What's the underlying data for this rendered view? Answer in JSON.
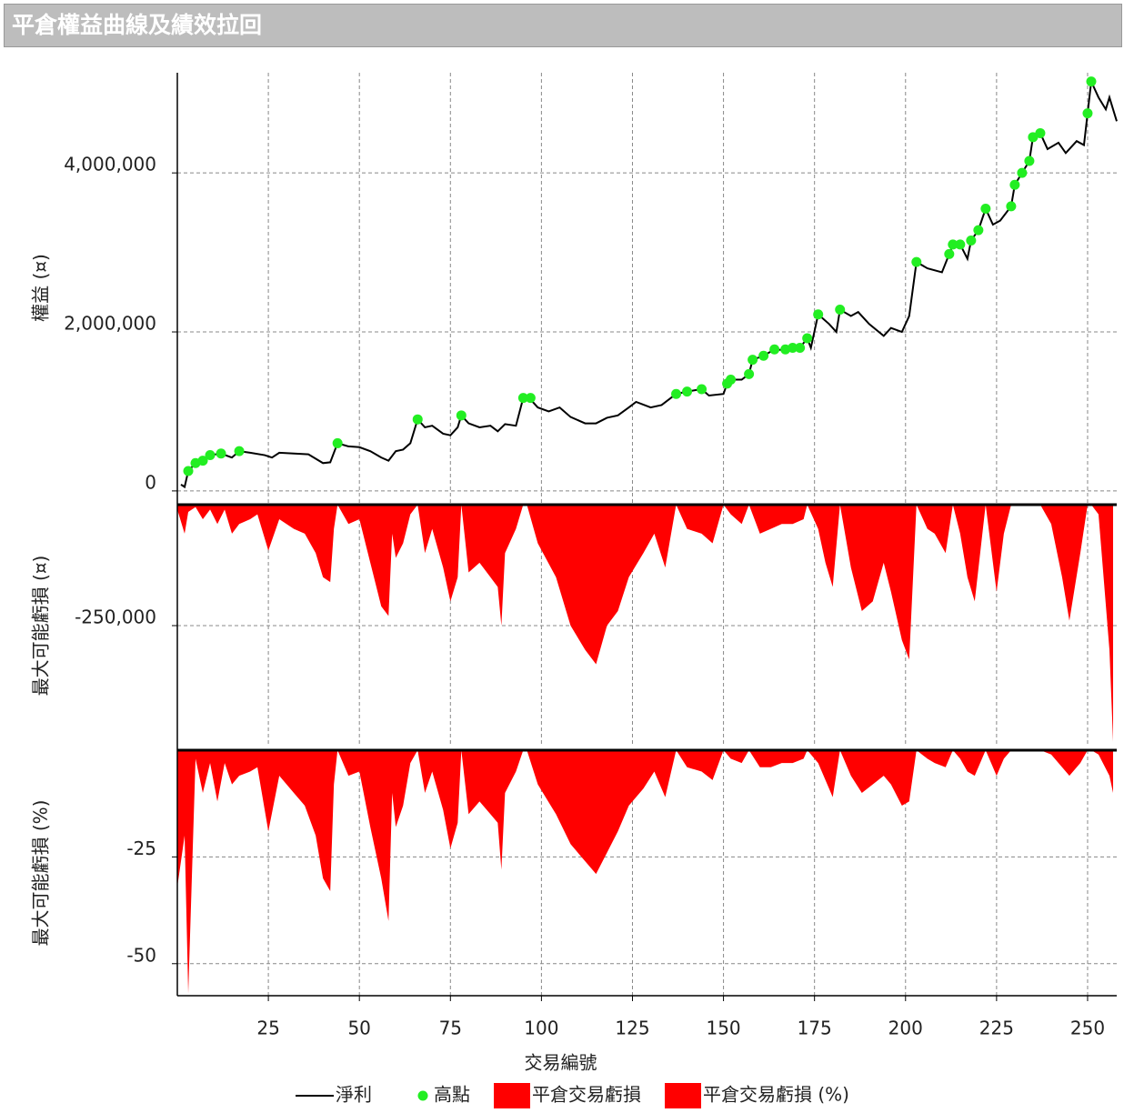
{
  "title": "平倉權益曲線及績效拉回",
  "chart_data": [
    {
      "type": "line",
      "ylabel": "權益 (¤)",
      "ylim": [
        -150000,
        5260000
      ],
      "yticks": [
        0,
        {
          "value": 2000000,
          "label": "2,000,000"
        },
        {
          "value": 4000000,
          "label": "4,000,000"
        }
      ],
      "grid": true,
      "series": [
        {
          "name": "淨利",
          "type": "line",
          "color": "#000000",
          "x": [
            1,
            2,
            3,
            5,
            7,
            9,
            12,
            15,
            17,
            20,
            24,
            26,
            28,
            32,
            36,
            40,
            42,
            44,
            47,
            50,
            53,
            56,
            58,
            60,
            62,
            64,
            66,
            68,
            70,
            73,
            75,
            77,
            78,
            80,
            83,
            86,
            88,
            90,
            93,
            95,
            97,
            99,
            102,
            105,
            108,
            112,
            115,
            118,
            121,
            124,
            126,
            130,
            133,
            137,
            140,
            144,
            146,
            150,
            151,
            152,
            155,
            157,
            158,
            161,
            164,
            167,
            169,
            171,
            173,
            174,
            176,
            179,
            181,
            182,
            185,
            187,
            190,
            194,
            196,
            199,
            201,
            203,
            206,
            210,
            212,
            213,
            215,
            217,
            218,
            220,
            222,
            224,
            226,
            229,
            230,
            232,
            234,
            235,
            237,
            239,
            242,
            244,
            247,
            249,
            250,
            251,
            253,
            255,
            256,
            258
          ],
          "values": [
            80000,
            50000,
            250000,
            350000,
            380000,
            450000,
            470000,
            420000,
            500000,
            480000,
            450000,
            420000,
            480000,
            470000,
            460000,
            350000,
            360000,
            600000,
            560000,
            550000,
            500000,
            420000,
            380000,
            500000,
            520000,
            600000,
            900000,
            800000,
            820000,
            720000,
            700000,
            800000,
            950000,
            850000,
            800000,
            820000,
            750000,
            840000,
            820000,
            1170000,
            1150000,
            1050000,
            1000000,
            1050000,
            930000,
            850000,
            850000,
            920000,
            950000,
            1050000,
            1120000,
            1050000,
            1080000,
            1220000,
            1250000,
            1280000,
            1200000,
            1220000,
            1350000,
            1400000,
            1400000,
            1470000,
            1650000,
            1700000,
            1780000,
            1770000,
            1800000,
            1800000,
            1920000,
            1800000,
            2220000,
            2100000,
            2000000,
            2280000,
            2200000,
            2250000,
            2100000,
            1950000,
            2050000,
            2000000,
            2200000,
            2880000,
            2800000,
            2750000,
            2980000,
            3100000,
            3100000,
            2920000,
            3150000,
            3280000,
            3550000,
            3350000,
            3400000,
            3580000,
            3850000,
            4000000,
            4150000,
            4450000,
            4500000,
            4300000,
            4380000,
            4250000,
            4400000,
            4350000,
            4750000,
            5150000,
            4950000,
            4800000,
            4950000,
            4650000
          ]
        },
        {
          "name": "高點",
          "type": "scatter",
          "color": "#22ee22",
          "x": [
            3,
            5,
            7,
            9,
            12,
            17,
            44,
            66,
            78,
            95,
            97,
            137,
            140,
            144,
            151,
            152,
            157,
            158,
            161,
            164,
            167,
            169,
            171,
            173,
            176,
            182,
            203,
            212,
            213,
            215,
            218,
            220,
            222,
            229,
            230,
            232,
            234,
            235,
            237,
            250,
            251
          ],
          "values": [
            250000,
            350000,
            380000,
            450000,
            470000,
            500000,
            600000,
            900000,
            950000,
            1170000,
            1170000,
            1220000,
            1250000,
            1280000,
            1350000,
            1400000,
            1470000,
            1650000,
            1700000,
            1780000,
            1780000,
            1800000,
            1800000,
            1920000,
            2220000,
            2280000,
            2880000,
            2980000,
            3100000,
            3100000,
            3150000,
            3280000,
            3550000,
            3580000,
            3850000,
            4000000,
            4150000,
            4450000,
            4500000,
            4750000,
            5150000
          ]
        }
      ]
    },
    {
      "type": "area",
      "ylabel": "最大可能虧損 (¤)",
      "ylim": [
        -500000,
        0
      ],
      "yticks": [
        {
          "value": -250000,
          "label": "-250,000"
        }
      ],
      "grid": true,
      "series": [
        {
          "name": "平倉交易虧損",
          "color": "#ff0000",
          "x": [
            0,
            2,
            3,
            5,
            7,
            9,
            11,
            13,
            15,
            17,
            20,
            22,
            25,
            28,
            32,
            35,
            38,
            40,
            42,
            43,
            44,
            47,
            50,
            53,
            56,
            58,
            59,
            60,
            62,
            64,
            66,
            68,
            70,
            73,
            75,
            77,
            78,
            80,
            83,
            86,
            88,
            89,
            90,
            93,
            95,
            96,
            99,
            104,
            108,
            112,
            115,
            118,
            121,
            124,
            128,
            131,
            134,
            137,
            140,
            144,
            147,
            150,
            152,
            155,
            157,
            160,
            163,
            166,
            169,
            172,
            173,
            176,
            178,
            180,
            182,
            185,
            188,
            191,
            194,
            196,
            199,
            201,
            203,
            206,
            208,
            211,
            213,
            215,
            217,
            219,
            222,
            225,
            227,
            229,
            230,
            237,
            240,
            243,
            245,
            248,
            250,
            251,
            253,
            256,
            257
          ],
          "values": [
            -10000,
            -60000,
            -15000,
            -5000,
            -30000,
            -10000,
            -40000,
            -10000,
            -60000,
            -40000,
            -30000,
            -20000,
            -95000,
            -30000,
            -50000,
            -60000,
            -100000,
            -150000,
            -160000,
            -50000,
            0,
            -40000,
            -30000,
            -120000,
            -210000,
            -230000,
            -60000,
            -110000,
            -80000,
            -20000,
            0,
            -100000,
            -50000,
            -130000,
            -200000,
            -150000,
            0,
            -140000,
            -120000,
            -150000,
            -170000,
            -250000,
            -100000,
            -50000,
            0,
            0,
            -80000,
            -150000,
            -250000,
            -300000,
            -330000,
            -250000,
            -220000,
            -150000,
            -100000,
            -60000,
            -130000,
            0,
            -50000,
            -60000,
            -80000,
            0,
            -20000,
            -40000,
            0,
            -60000,
            -50000,
            -40000,
            -40000,
            -30000,
            0,
            -50000,
            -120000,
            -170000,
            0,
            -130000,
            -220000,
            -200000,
            -120000,
            -180000,
            -280000,
            -320000,
            0,
            -50000,
            -60000,
            -100000,
            0,
            -60000,
            -150000,
            -200000,
            0,
            -180000,
            -60000,
            0,
            0,
            0,
            -40000,
            -150000,
            -240000,
            -100000,
            0,
            0,
            -20000,
            -300000,
            -490000
          ]
        }
      ]
    },
    {
      "type": "area",
      "ylabel": "最大可能虧損 (%)",
      "xlabel": "交易編號",
      "ylim": [
        -57.5,
        0
      ],
      "yticks": [
        -25,
        -50
      ],
      "xlim": [
        0,
        258
      ],
      "xticks": [
        25,
        50,
        75,
        100,
        125,
        150,
        175,
        200,
        225,
        250
      ],
      "grid": true,
      "series": [
        {
          "name": "平倉交易虧損 (%)",
          "color": "#ff0000",
          "x": [
            0,
            2,
            3,
            5,
            7,
            9,
            11,
            13,
            15,
            17,
            20,
            22,
            25,
            28,
            32,
            35,
            38,
            40,
            42,
            43,
            44,
            47,
            50,
            53,
            56,
            58,
            59,
            60,
            62,
            64,
            66,
            68,
            70,
            73,
            75,
            77,
            78,
            80,
            83,
            86,
            88,
            89,
            90,
            93,
            95,
            96,
            99,
            104,
            108,
            112,
            115,
            118,
            121,
            124,
            128,
            131,
            134,
            137,
            140,
            144,
            147,
            150,
            152,
            155,
            157,
            160,
            163,
            166,
            169,
            172,
            173,
            176,
            178,
            180,
            182,
            185,
            188,
            191,
            194,
            196,
            199,
            201,
            203,
            206,
            208,
            211,
            213,
            215,
            217,
            219,
            222,
            225,
            227,
            229,
            230,
            237,
            240,
            243,
            245,
            248,
            250,
            251,
            253,
            256,
            257
          ],
          "values": [
            -32,
            -20,
            -57,
            -2,
            -10,
            -3,
            -12,
            -3,
            -8,
            -6,
            -5,
            -4,
            -19,
            -6,
            -10,
            -13,
            -20,
            -30,
            -33,
            -8,
            0,
            -6,
            -5,
            -18,
            -30,
            -40,
            -10,
            -18,
            -13,
            -3,
            0,
            -10,
            -5,
            -14,
            -23,
            -17,
            0,
            -15,
            -12,
            -15,
            -17,
            -28,
            -10,
            -5,
            0,
            0,
            -8,
            -15,
            -22,
            -26,
            -29,
            -24,
            -19,
            -13,
            -9,
            -5,
            -11,
            0,
            -4,
            -5,
            -7,
            0,
            -2,
            -3,
            0,
            -4,
            -4,
            -3,
            -3,
            -2,
            0,
            -3,
            -7,
            -11,
            0,
            -6,
            -10,
            -8,
            -6,
            -8,
            -13,
            -12,
            0,
            -2,
            -3,
            -4,
            0,
            -2,
            -5,
            -6,
            0,
            -6,
            -2,
            0,
            0,
            0,
            -1,
            -4,
            -6,
            -3,
            0,
            0,
            -1,
            -6,
            -10
          ]
        }
      ]
    }
  ]
}
